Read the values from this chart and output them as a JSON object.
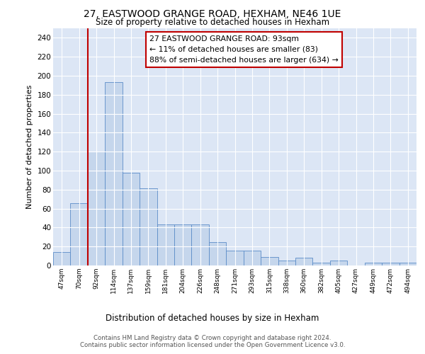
{
  "title1": "27, EASTWOOD GRANGE ROAD, HEXHAM, NE46 1UE",
  "title2": "Size of property relative to detached houses in Hexham",
  "xlabel": "Distribution of detached houses by size in Hexham",
  "ylabel": "Number of detached properties",
  "categories": [
    "47sqm",
    "70sqm",
    "92sqm",
    "114sqm",
    "137sqm",
    "159sqm",
    "181sqm",
    "204sqm",
    "226sqm",
    "248sqm",
    "271sqm",
    "293sqm",
    "315sqm",
    "338sqm",
    "360sqm",
    "382sqm",
    "405sqm",
    "427sqm",
    "449sqm",
    "472sqm",
    "494sqm"
  ],
  "values": [
    14,
    66,
    120,
    193,
    98,
    81,
    43,
    43,
    43,
    25,
    16,
    16,
    9,
    5,
    8,
    3,
    5,
    0,
    3,
    3,
    3
  ],
  "bar_color": "#c5d6ec",
  "bar_edge_color": "#5b8cc8",
  "vline_color": "#c00000",
  "annotation_text": "27 EASTWOOD GRANGE ROAD: 93sqm\n← 11% of detached houses are smaller (83)\n88% of semi-detached houses are larger (634) →",
  "annotation_box_color": "white",
  "annotation_box_edge": "#c00000",
  "ylim": [
    0,
    250
  ],
  "yticks": [
    0,
    20,
    40,
    60,
    80,
    100,
    120,
    140,
    160,
    180,
    200,
    220,
    240
  ],
  "background_color": "#dce6f5",
  "footer_text": "Contains HM Land Registry data © Crown copyright and database right 2024.\nContains public sector information licensed under the Open Government Licence v3.0."
}
